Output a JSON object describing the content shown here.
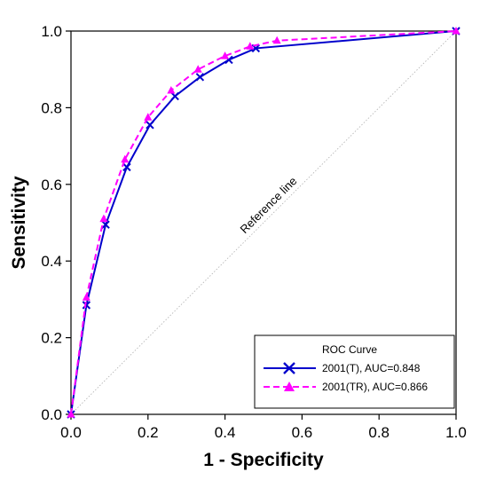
{
  "chart_data": {
    "type": "line",
    "xlabel": "1 - Specificity",
    "ylabel": "Sensitivity",
    "xlim": [
      0,
      1
    ],
    "ylim": [
      0,
      1
    ],
    "xticks": [
      "0.0",
      "0.2",
      "0.4",
      "0.6",
      "0.8",
      "1.0"
    ],
    "yticks": [
      "0.0",
      "0.2",
      "0.4",
      "0.6",
      "0.8",
      "1.0"
    ],
    "grid": false,
    "legend": {
      "title": "ROC Curve",
      "placement": "bottom-right"
    },
    "reference_line": {
      "label": "Reference line",
      "points": [
        [
          0,
          0
        ],
        [
          1,
          1
        ]
      ]
    },
    "series": [
      {
        "name": "2001(T), AUC=0.848",
        "color": "#0000cc",
        "line_style": "solid",
        "marker": "x",
        "points": [
          [
            0.0,
            0.0
          ],
          [
            0.04,
            0.285
          ],
          [
            0.09,
            0.495
          ],
          [
            0.145,
            0.645
          ],
          [
            0.205,
            0.755
          ],
          [
            0.27,
            0.83
          ],
          [
            0.335,
            0.88
          ],
          [
            0.41,
            0.925
          ],
          [
            0.48,
            0.955
          ],
          [
            1.0,
            1.0
          ]
        ]
      },
      {
        "name": "2001(TR), AUC=0.866",
        "color": "#ff00ff",
        "line_style": "dashed",
        "marker": "triangle",
        "points": [
          [
            0.0,
            0.0
          ],
          [
            0.04,
            0.305
          ],
          [
            0.085,
            0.51
          ],
          [
            0.14,
            0.665
          ],
          [
            0.2,
            0.775
          ],
          [
            0.26,
            0.845
          ],
          [
            0.33,
            0.9
          ],
          [
            0.4,
            0.935
          ],
          [
            0.465,
            0.96
          ],
          [
            0.535,
            0.975
          ],
          [
            1.0,
            1.0
          ]
        ]
      }
    ]
  }
}
